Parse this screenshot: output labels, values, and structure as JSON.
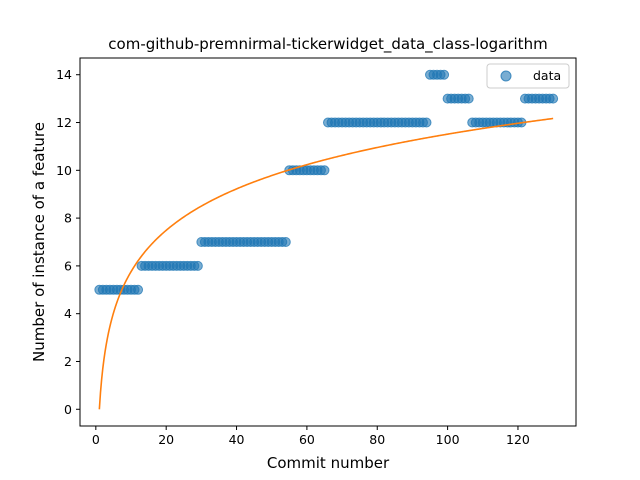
{
  "chart_data": {
    "type": "scatter",
    "title": "com-github-premnirmal-tickerwidget_data_class-logarithm",
    "xlabel": "Commit number",
    "ylabel": "Number of instance of a feature",
    "xlim": [
      -4.5,
      136.5
    ],
    "ylim": [
      -0.7,
      14.7
    ],
    "xticks": [
      0,
      20,
      40,
      60,
      80,
      100,
      120
    ],
    "yticks": [
      0,
      2,
      4,
      6,
      8,
      10,
      12,
      14
    ],
    "legend": {
      "position": "top-right",
      "entries": [
        "data"
      ]
    },
    "colors": {
      "points": "#1f77b4",
      "fit": "#ff7f0e"
    },
    "grid": false,
    "series": [
      {
        "name": "data",
        "kind": "scatter",
        "segments": [
          {
            "x_start": 1,
            "x_end": 12,
            "y": 5
          },
          {
            "x_start": 13,
            "x_end": 29,
            "y": 6
          },
          {
            "x_start": 30,
            "x_end": 54,
            "y": 7
          },
          {
            "x_start": 55,
            "x_end": 65,
            "y": 10
          },
          {
            "x_start": 66,
            "x_end": 94,
            "y": 12
          },
          {
            "x_start": 95,
            "x_end": 99,
            "y": 14
          },
          {
            "x_start": 100,
            "x_end": 106,
            "y": 13
          },
          {
            "x_start": 107,
            "x_end": 121,
            "y": 12
          },
          {
            "x_start": 122,
            "x_end": 130,
            "y": 13
          }
        ]
      },
      {
        "kind": "line",
        "model": "logarithmic",
        "a": 2.5,
        "b": 0,
        "x_range": [
          1,
          130
        ]
      }
    ]
  }
}
